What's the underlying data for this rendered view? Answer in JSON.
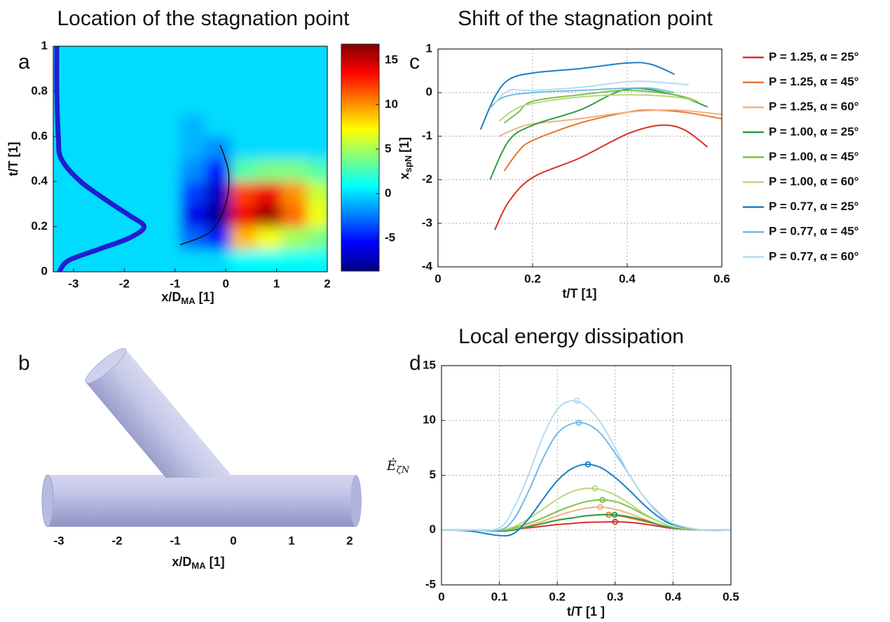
{
  "chart_data": [
    {
      "type": "heatmap",
      "panel": "a",
      "title": "Location of the stagnation point",
      "xlabel": {
        "base": "x/D",
        "sub": "MA",
        "unit": "[1]"
      },
      "ylabel": "t/T [1]",
      "xlim": [
        -3.4,
        2
      ],
      "ylim": [
        0,
        1
      ],
      "xticks": [
        -3,
        -2,
        -1,
        0,
        1,
        2
      ],
      "yticks": [
        0,
        0.2,
        0.4,
        0.6,
        0.8,
        1
      ],
      "x": [
        -3.15,
        -2.65,
        -2.15,
        -1.65,
        -1.15,
        -0.65,
        -0.15,
        0.35,
        0.85,
        1.35,
        1.85
      ],
      "y": [
        0.05,
        0.15,
        0.25,
        0.35,
        0.45,
        0.55,
        0.65,
        0.75,
        0.85,
        0.95
      ],
      "z": [
        [
          0,
          0,
          0,
          0,
          0,
          0,
          0,
          1,
          1,
          1,
          1
        ],
        [
          0,
          0,
          0,
          0,
          0,
          -3,
          -5,
          9,
          7,
          5,
          4
        ],
        [
          0,
          0,
          0,
          0,
          0,
          -6,
          -8,
          14,
          16,
          11,
          7
        ],
        [
          0,
          0,
          0,
          0,
          0,
          -4,
          -7,
          12,
          14,
          10,
          6
        ],
        [
          0,
          0,
          0,
          0,
          0,
          -2,
          -5,
          3,
          4,
          4,
          3
        ],
        [
          0,
          0,
          0,
          0,
          0,
          -1,
          -2,
          0,
          0,
          0,
          0
        ],
        [
          0,
          0,
          0,
          0,
          0,
          -1,
          0,
          0,
          0,
          0,
          0
        ],
        [
          0,
          0,
          0,
          0,
          0,
          0,
          0,
          0,
          0,
          0,
          0
        ],
        [
          0,
          0,
          0,
          0,
          0,
          0,
          0,
          0,
          0,
          0,
          0
        ],
        [
          0,
          0,
          0,
          0,
          0,
          0,
          0,
          0,
          0,
          0,
          0
        ]
      ],
      "clim": [
        -8.7,
        16.8
      ],
      "cticks": [
        -5,
        0,
        5,
        10,
        15
      ],
      "colormap": "jet",
      "series": [
        {
          "color": "#1f1fd0",
          "x": [
            -3.28,
            -3.1,
            -2.5,
            -1.9,
            -1.61,
            -1.9,
            -2.24,
            -2.86,
            -3.24,
            -3.3,
            -3.33,
            -3.33
          ],
          "values": [
            0,
            0.05,
            0.1,
            0.15,
            0.2,
            0.25,
            0.3,
            0.4,
            0.5,
            0.6,
            0.8,
            1
          ]
        },
        {
          "color": "#111111",
          "x": [
            -0.89,
            -0.29,
            0,
            0.06,
            -0.04,
            -0.11
          ],
          "values": [
            0.12,
            0.18,
            0.3,
            0.43,
            0.52,
            0.56
          ]
        }
      ]
    },
    {
      "type": "line",
      "panel": "c",
      "title": "Shift of the stagnation point",
      "xlabel": "t/T [1]",
      "ylabel": {
        "base": "x",
        "sub": "spN",
        "unit": "[1]"
      },
      "xlim": [
        0,
        0.6
      ],
      "ylim": [
        -4,
        1
      ],
      "xticks": [
        0,
        0.2,
        0.4,
        0.6
      ],
      "yticks": [
        -4,
        -3,
        -2,
        -1,
        0,
        1
      ],
      "grid": true,
      "series": [
        {
          "name": "P = 1.25, α = 25°",
          "color": "#d7312a",
          "x": [
            0.12,
            0.15,
            0.2,
            0.3,
            0.4,
            0.47,
            0.52,
            0.57
          ],
          "values": [
            -3.15,
            -2.5,
            -1.95,
            -1.5,
            -0.95,
            -0.75,
            -0.85,
            -1.25
          ]
        },
        {
          "name": "P = 1.25, α = 45°",
          "color": "#e8772e",
          "x": [
            0.14,
            0.17,
            0.2,
            0.3,
            0.4,
            0.45,
            0.52,
            0.6
          ],
          "values": [
            -1.8,
            -1.35,
            -1.1,
            -0.7,
            -0.45,
            -0.4,
            -0.45,
            -0.6
          ]
        },
        {
          "name": "P = 1.25, α = 60°",
          "color": "#f2b27f",
          "x": [
            0.13,
            0.16,
            0.2,
            0.3,
            0.4,
            0.5,
            0.6
          ],
          "values": [
            -1.0,
            -0.85,
            -0.72,
            -0.6,
            -0.45,
            -0.4,
            -0.5
          ]
        },
        {
          "name": "P = 1.00, α = 25°",
          "color": "#2e9e45",
          "x": [
            0.11,
            0.15,
            0.2,
            0.3,
            0.4,
            0.5,
            0.57
          ],
          "values": [
            -2.0,
            -1.1,
            -0.75,
            -0.4,
            0.08,
            -0.05,
            -0.33
          ]
        },
        {
          "name": "P = 1.00, α = 45°",
          "color": "#7cc043",
          "x": [
            0.14,
            0.17,
            0.2,
            0.3,
            0.4,
            0.5,
            0.55
          ],
          "values": [
            -0.7,
            -0.45,
            -0.2,
            -0.05,
            0.05,
            -0.05,
            -0.2
          ]
        },
        {
          "name": "P = 1.00, α = 60°",
          "color": "#b5d87d",
          "x": [
            0.13,
            0.16,
            0.2,
            0.3,
            0.4,
            0.5,
            0.55
          ],
          "values": [
            -0.65,
            -0.4,
            -0.25,
            -0.1,
            -0.05,
            -0.1,
            -0.2
          ]
        },
        {
          "name": "P = 0.77, α = 25°",
          "color": "#1a7fc1",
          "x": [
            0.09,
            0.12,
            0.15,
            0.2,
            0.3,
            0.4,
            0.45,
            0.5
          ],
          "values": [
            -0.85,
            -0.1,
            0.3,
            0.45,
            0.55,
            0.68,
            0.65,
            0.42
          ]
        },
        {
          "name": "P = 0.77, α = 45°",
          "color": "#6fbbe8",
          "x": [
            0.11,
            0.14,
            0.2,
            0.3,
            0.4,
            0.45,
            0.5
          ],
          "values": [
            -0.35,
            -0.1,
            0.0,
            0.05,
            0.1,
            0.1,
            0.0
          ]
        },
        {
          "name": "P = 0.77, α = 60°",
          "color": "#b3dcf2",
          "x": [
            0.12,
            0.15,
            0.2,
            0.3,
            0.4,
            0.45,
            0.53
          ],
          "values": [
            -0.25,
            0.05,
            0.05,
            0.12,
            0.25,
            0.25,
            0.18
          ]
        }
      ]
    },
    {
      "type": "line",
      "panel": "d",
      "title": "Local energy dissipation",
      "xlabel": "t/T [1 ]",
      "ylabel": {
        "base": "Ė",
        "sub": "ζN"
      },
      "xlim": [
        0,
        0.5
      ],
      "ylim": [
        -5,
        15
      ],
      "xticks": [
        0,
        0.1,
        0.2,
        0.3,
        0.4,
        0.5
      ],
      "yticks": [
        -5,
        0,
        5,
        10,
        15
      ],
      "grid": true,
      "x": [
        0,
        0.05,
        0.1,
        0.125,
        0.15,
        0.175,
        0.2,
        0.225,
        0.25,
        0.275,
        0.3,
        0.325,
        0.35,
        0.375,
        0.4,
        0.45,
        0.5
      ],
      "series": [
        {
          "color": "#d7312a",
          "values": [
            0,
            0,
            0,
            0.1,
            0.2,
            0.35,
            0.5,
            0.6,
            0.7,
            0.73,
            0.75,
            0.7,
            0.55,
            0.35,
            0.15,
            0,
            0
          ],
          "peak": [
            0.3,
            0.75
          ]
        },
        {
          "color": "#e8772e",
          "values": [
            0,
            0,
            0,
            0.1,
            0.3,
            0.6,
            0.9,
            1.1,
            1.3,
            1.4,
            1.35,
            1.1,
            0.8,
            0.5,
            0.2,
            0,
            0
          ],
          "peak": [
            0.289,
            1.4
          ]
        },
        {
          "color": "#f2b27f",
          "values": [
            0,
            0,
            0,
            0.1,
            0.4,
            0.8,
            1.3,
            1.7,
            2,
            2.1,
            1.9,
            1.5,
            1,
            0.5,
            0.2,
            0,
            0
          ],
          "peak": [
            0.274,
            2.1
          ]
        },
        {
          "color": "#2e9e45",
          "values": [
            0,
            0,
            -0.1,
            0,
            0.3,
            0.6,
            0.9,
            1.1,
            1.3,
            1.4,
            1.4,
            1.2,
            0.9,
            0.5,
            0.2,
            0,
            0
          ],
          "peak": [
            0.299,
            1.4
          ]
        },
        {
          "color": "#7cc043",
          "values": [
            0,
            0,
            0,
            0.2,
            0.6,
            1.1,
            1.7,
            2.2,
            2.6,
            2.75,
            2.6,
            2.1,
            1.4,
            0.8,
            0.3,
            0,
            0
          ],
          "peak": [
            0.278,
            2.75
          ]
        },
        {
          "color": "#b5d87d",
          "values": [
            0,
            0,
            0,
            0.3,
            1,
            1.9,
            2.8,
            3.5,
            3.8,
            3.7,
            3.2,
            2.4,
            1.5,
            0.8,
            0.3,
            0,
            0
          ],
          "peak": [
            0.265,
            3.8
          ]
        },
        {
          "color": "#1a7fc1",
          "values": [
            0,
            -0.1,
            -0.5,
            -0.3,
            1,
            2.8,
            4.5,
            5.6,
            6,
            5.7,
            4.8,
            3.6,
            2.3,
            1.2,
            0.5,
            0,
            0
          ],
          "peak": [
            0.253,
            6.0
          ]
        },
        {
          "color": "#6fbbe8",
          "values": [
            0,
            0,
            0,
            1,
            3.5,
            6.5,
            8.8,
            9.7,
            9.7,
            8.8,
            7,
            5,
            3,
            1.6,
            0.6,
            0,
            0
          ],
          "peak": [
            0.237,
            9.8
          ]
        },
        {
          "color": "#b3dcf2",
          "values": [
            0,
            0,
            0.2,
            2,
            5,
            8.5,
            11,
            11.8,
            11.3,
            9.8,
            7.5,
            5,
            3,
            1.5,
            0.6,
            0,
            0
          ],
          "peak": [
            0.234,
            11.8
          ]
        }
      ]
    }
  ],
  "illustration": {
    "panel": "b",
    "xticks": [
      -3,
      -2,
      -1,
      0,
      1,
      2
    ],
    "xlabel": {
      "base": "x/D",
      "sub": "MA",
      "unit": "[1]"
    }
  }
}
